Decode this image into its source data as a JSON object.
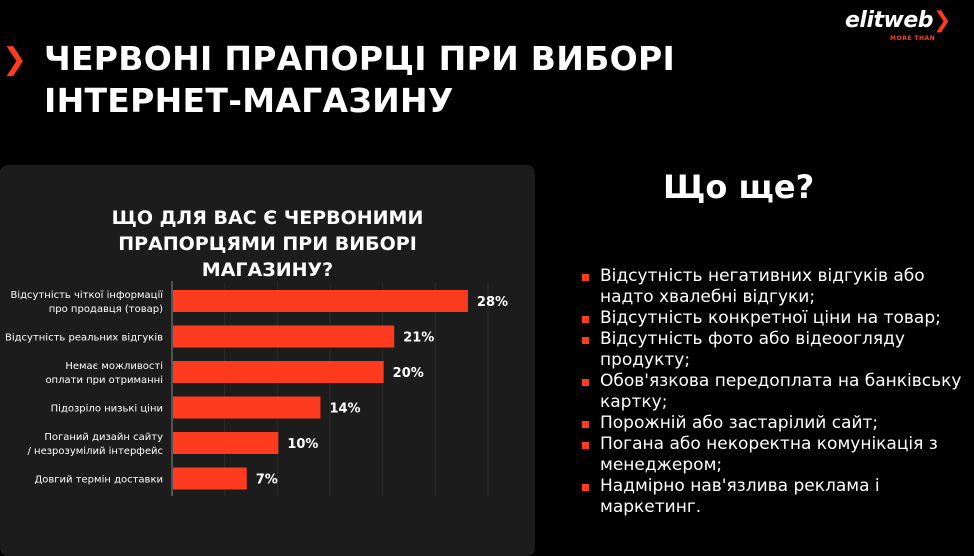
{
  "title": "ЧЕРВОНІ ПРАПОРЦІ ПРИ ВИБОРІ ІНТЕРНЕТ-МАГАЗИНУ",
  "logo": {
    "text": "elitweb",
    "tagline": "MORE THAN"
  },
  "colors": {
    "accent": "#ff3b1f",
    "card": "#1c1c1c",
    "background": "#000000"
  },
  "chart_data": {
    "type": "bar",
    "orientation": "horizontal",
    "title": "ЩО ДЛЯ ВАС Є ЧЕРВОНИМИ ПРАПОРЦЯМИ ПРИ ВИБОРІ МАГАЗИНУ?",
    "categories": [
      "Відсутність чіткої інформації про продавця (товар)",
      "Відсутність реальних відгуків",
      "Немає можливості оплати при отриманні",
      "Підозріло низькі ціни",
      "Поганий дизайн сайту / незрозумілий інтерфейс",
      "Довгий термін доставки"
    ],
    "values": [
      28,
      21,
      20,
      14,
      10,
      7
    ],
    "labels": [
      "28%",
      "21%",
      "20%",
      "14%",
      "10%",
      "7%"
    ],
    "xlim": [
      0,
      30
    ],
    "grid": true
  },
  "right": {
    "heading": "Що ще?",
    "items": [
      "Відсутність негативних відгуків або надто хвалебні відгуки;",
      "Відсутність конкретної ціни на товар;",
      "Відсутність фото або відеоогляду продукту;",
      "Обов'язкова передоплата на банківську картку;",
      "Порожній або застарілий сайт;",
      "Погана або некоректна комунікація з менеджером;",
      "Надмірно нав'язлива реклама і маркетинг."
    ]
  }
}
